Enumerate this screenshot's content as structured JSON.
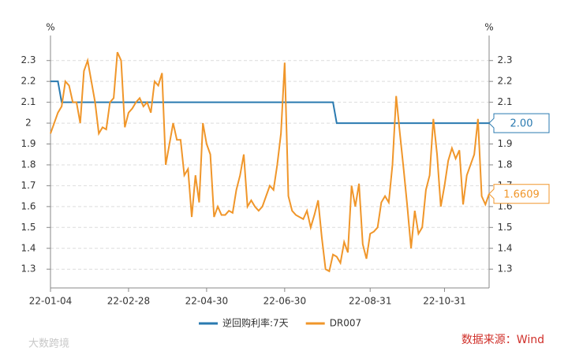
{
  "chart_data": {
    "type": "line",
    "y_unit": "%",
    "y2_unit": "%",
    "categories": [
      "22-01-04",
      null,
      null,
      null,
      null,
      null,
      null,
      null,
      null,
      null,
      null,
      null,
      null,
      null,
      null,
      null,
      null,
      null,
      null,
      null,
      null,
      "22-02-28",
      null,
      null,
      null,
      null,
      null,
      null,
      null,
      null,
      null,
      null,
      null,
      null,
      null,
      null,
      null,
      null,
      null,
      null,
      null,
      null,
      "22-04-30",
      null,
      null,
      null,
      null,
      null,
      null,
      null,
      null,
      null,
      null,
      null,
      null,
      null,
      null,
      null,
      null,
      null,
      null,
      null,
      null,
      "22-06-30",
      null,
      null,
      null,
      null,
      null,
      null,
      null,
      null,
      null,
      null,
      null,
      null,
      null,
      null,
      null,
      null,
      null,
      null,
      null,
      null,
      null,
      null,
      "22-08-31",
      null,
      null,
      null,
      null,
      null,
      null,
      null,
      null,
      null,
      null,
      null,
      null,
      null,
      null,
      null,
      null,
      null,
      null,
      null,
      "22-10-31",
      null,
      null,
      null,
      null,
      null,
      null,
      null,
      null,
      null,
      null,
      null,
      null
    ],
    "series": [
      {
        "name": "逆回购利率:7天",
        "color": "#2a7ab0",
        "axis": "y",
        "values": [
          2.2,
          2.2,
          2.2,
          2.1,
          2.1,
          2.1,
          2.1,
          2.1,
          2.1,
          2.1,
          2.1,
          2.1,
          2.1,
          2.1,
          2.1,
          2.1,
          2.1,
          2.1,
          2.1,
          2.1,
          2.1,
          2.1,
          2.1,
          2.1,
          2.1,
          2.1,
          2.1,
          2.1,
          2.1,
          2.1,
          2.1,
          2.1,
          2.1,
          2.1,
          2.1,
          2.1,
          2.1,
          2.1,
          2.1,
          2.1,
          2.1,
          2.1,
          2.1,
          2.1,
          2.1,
          2.1,
          2.1,
          2.1,
          2.1,
          2.1,
          2.1,
          2.1,
          2.1,
          2.1,
          2.1,
          2.1,
          2.1,
          2.1,
          2.1,
          2.1,
          2.1,
          2.1,
          2.1,
          2.1,
          2.1,
          2.1,
          2.1,
          2.1,
          2.1,
          2.1,
          2.1,
          2.1,
          2.1,
          2.1,
          2.1,
          2.1,
          2.1,
          2.0,
          2.0,
          2.0,
          2.0,
          2.0,
          2.0,
          2.0,
          2.0,
          2.0,
          2.0,
          2.0,
          2.0,
          2.0,
          2.0,
          2.0,
          2.0,
          2.0,
          2.0,
          2.0,
          2.0,
          2.0,
          2.0,
          2.0,
          2.0,
          2.0,
          2.0,
          2.0,
          2.0,
          2.0,
          2.0,
          2.0,
          2.0,
          2.0,
          2.0,
          2.0,
          2.0,
          2.0,
          2.0,
          2.0,
          2.0,
          2.0,
          2.0
        ],
        "value_labels": [
          null,
          null,
          null,
          null,
          null,
          null,
          null,
          null,
          null,
          null,
          null,
          null,
          null,
          null,
          null,
          null,
          null,
          null,
          null,
          null,
          null,
          null,
          null,
          null,
          null,
          null,
          null,
          null,
          null,
          null,
          null,
          null,
          null,
          null,
          null,
          null,
          null,
          null,
          null,
          null,
          null,
          null,
          null,
          null,
          null,
          null,
          null,
          null,
          null,
          null,
          null,
          null,
          null,
          null,
          null,
          null,
          null,
          null,
          null,
          null,
          null,
          null,
          null,
          null,
          null,
          null,
          null,
          null,
          null,
          null,
          null,
          null,
          null,
          null,
          null,
          null,
          null,
          null,
          null,
          null,
          null,
          null,
          null,
          null,
          null,
          null,
          null,
          null,
          null,
          null,
          null,
          null,
          null,
          null,
          null,
          null,
          null,
          null,
          null,
          null,
          null,
          null,
          null,
          null,
          null,
          null,
          null,
          null,
          null,
          null,
          null,
          null,
          null,
          null,
          null,
          null,
          null,
          null,
          "2.00"
        ]
      },
      {
        "name": "DR007",
        "color": "#f0962a",
        "axis": "y",
        "values": [
          1.95,
          2.0,
          2.05,
          2.08,
          2.2,
          2.18,
          2.1,
          2.1,
          2.0,
          2.25,
          2.3,
          2.2,
          2.1,
          1.95,
          1.98,
          1.97,
          2.1,
          2.12,
          2.34,
          2.3,
          1.98,
          2.05,
          2.07,
          2.1,
          2.12,
          2.08,
          2.1,
          2.05,
          2.2,
          2.18,
          2.24,
          1.8,
          1.9,
          2.0,
          1.92,
          1.92,
          1.75,
          1.78,
          1.55,
          1.75,
          1.62,
          2.0,
          1.9,
          1.85,
          1.55,
          1.6,
          1.56,
          1.56,
          1.58,
          1.57,
          1.68,
          1.75,
          1.85,
          1.6,
          1.63,
          1.6,
          1.58,
          1.6,
          1.65,
          1.7,
          1.68,
          1.8,
          1.95,
          2.29,
          1.65,
          1.58,
          1.56,
          1.55,
          1.54,
          1.58,
          1.5,
          1.56,
          1.63,
          1.45,
          1.3,
          1.29,
          1.37,
          1.36,
          1.33,
          1.43,
          1.38,
          1.7,
          1.6,
          1.71,
          1.42,
          1.35,
          1.47,
          1.48,
          1.5,
          1.62,
          1.65,
          1.62,
          1.8,
          2.13,
          1.95,
          1.78,
          1.6,
          1.4,
          1.58,
          1.47,
          1.5,
          1.68,
          1.75,
          2.02,
          1.85,
          1.6,
          1.7,
          1.82,
          1.88,
          1.83,
          1.87,
          1.61,
          1.75,
          1.8,
          1.85,
          2.02,
          1.65,
          1.61,
          1.6609
        ],
        "value_labels": [
          null,
          null,
          null,
          null,
          null,
          null,
          null,
          null,
          null,
          null,
          null,
          null,
          null,
          null,
          null,
          null,
          null,
          null,
          null,
          null,
          null,
          null,
          null,
          null,
          null,
          null,
          null,
          null,
          null,
          null,
          null,
          null,
          null,
          null,
          null,
          null,
          null,
          null,
          null,
          null,
          null,
          null,
          null,
          null,
          null,
          null,
          null,
          null,
          null,
          null,
          null,
          null,
          null,
          null,
          null,
          null,
          null,
          null,
          null,
          null,
          null,
          null,
          null,
          null,
          null,
          null,
          null,
          null,
          null,
          null,
          null,
          null,
          null,
          null,
          null,
          null,
          null,
          null,
          null,
          null,
          null,
          null,
          null,
          null,
          null,
          null,
          null,
          null,
          null,
          null,
          null,
          null,
          null,
          null,
          null,
          null,
          null,
          null,
          null,
          null,
          null,
          null,
          null,
          null,
          null,
          null,
          null,
          null,
          null,
          null,
          null,
          null,
          null,
          null,
          null,
          null,
          null,
          null,
          "1.6609"
        ]
      }
    ],
    "ylim": [
      1.21,
      2.42
    ],
    "yticks": [
      1.3,
      1.4,
      1.5,
      1.6,
      1.7,
      1.8,
      1.9,
      2,
      2.1,
      2.2,
      2.3
    ],
    "y2lim": [
      1.21,
      2.42
    ],
    "y2ticks": [
      1.3,
      1.4,
      1.5,
      1.6,
      1.7,
      1.8,
      1.9,
      2,
      2.1,
      2.2,
      2.3
    ],
    "grid": true,
    "legend": "bottom",
    "source": "数据来源：Wind",
    "watermark": "大数跨境"
  }
}
